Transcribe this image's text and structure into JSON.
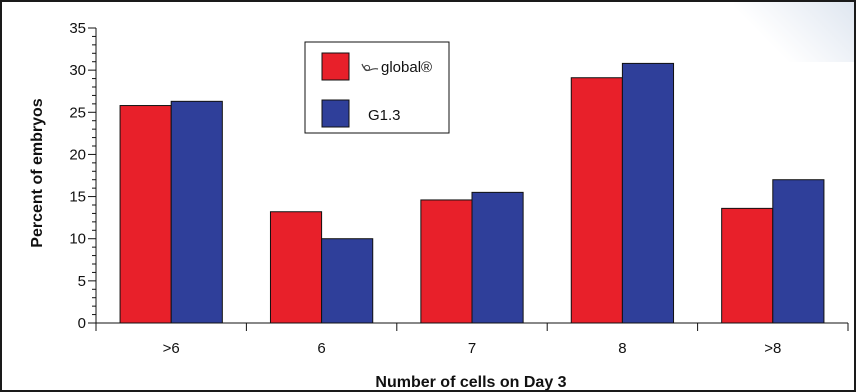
{
  "chart_data": {
    "type": "bar",
    "title": "",
    "xlabel": "Number of cells on Day 3",
    "ylabel": "Percent of embryos",
    "ylim": [
      0,
      35
    ],
    "yticks": [
      0,
      5,
      10,
      15,
      20,
      25,
      30,
      35
    ],
    "categories": [
      ">6",
      "6",
      "7",
      "8",
      ">8"
    ],
    "series": [
      {
        "name": "global®",
        "color": "#e8202a",
        "values": [
          25.8,
          13.2,
          14.6,
          29.1,
          13.6
        ]
      },
      {
        "name": "G1.3",
        "color": "#2f3f9a",
        "values": [
          26.3,
          10.0,
          15.5,
          30.8,
          17.0
        ]
      }
    ],
    "legend_position": "top-left-inside",
    "grid": false
  }
}
